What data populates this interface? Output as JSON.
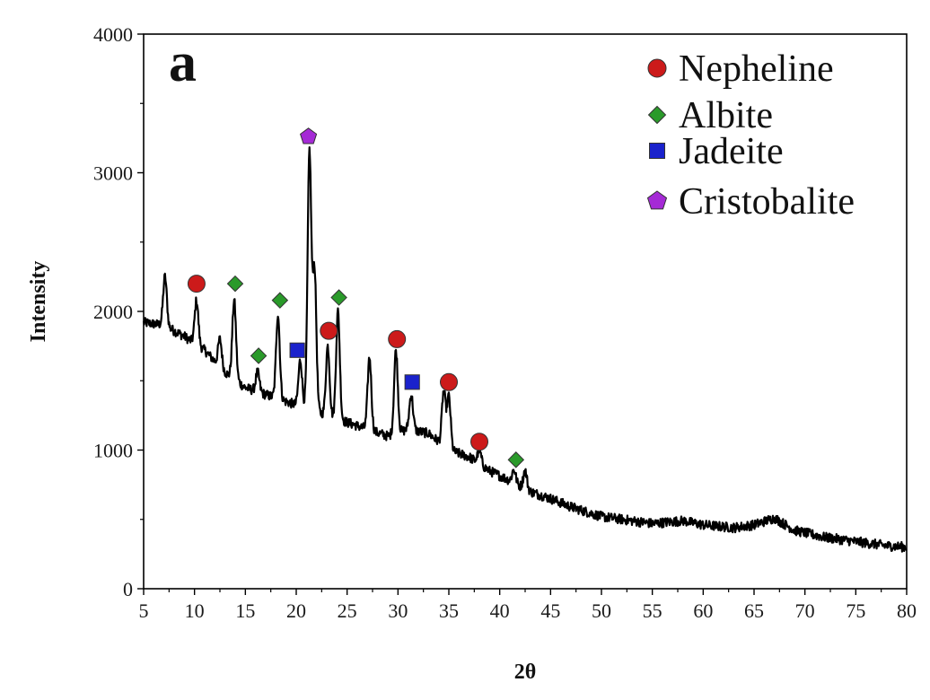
{
  "chart_data": {
    "type": "line",
    "panel_label": "a",
    "xlabel": "2θ",
    "ylabel": "Intensity",
    "xlim": [
      5,
      80
    ],
    "ylim": [
      0,
      4000
    ],
    "xticks": [
      "5",
      "10",
      "15",
      "20",
      "25",
      "30",
      "35",
      "40",
      "45",
      "50",
      "55",
      "60",
      "65",
      "70",
      "75",
      "80"
    ],
    "yticks": [
      "0",
      "1000",
      "2000",
      "3000",
      "4000"
    ],
    "grid": false,
    "legend_position": "top-right",
    "series_color": "#000000",
    "baseline": [
      [
        5,
        1920
      ],
      [
        7,
        1900
      ],
      [
        9,
        1820
      ],
      [
        11,
        1720
      ],
      [
        13,
        1560
      ],
      [
        15,
        1450
      ],
      [
        17,
        1400
      ],
      [
        19,
        1350
      ],
      [
        21,
        1300
      ],
      [
        23,
        1250
      ],
      [
        25,
        1200
      ],
      [
        27,
        1150
      ],
      [
        29,
        1100
      ],
      [
        31,
        1150
      ],
      [
        33,
        1120
      ],
      [
        35,
        1000
      ],
      [
        37,
        950
      ],
      [
        39,
        850
      ],
      [
        41,
        780
      ],
      [
        43,
        700
      ],
      [
        45,
        650
      ],
      [
        47,
        590
      ],
      [
        50,
        520
      ],
      [
        55,
        470
      ],
      [
        58,
        490
      ],
      [
        60,
        460
      ],
      [
        63,
        440
      ],
      [
        65,
        460
      ],
      [
        67,
        510
      ],
      [
        69,
        420
      ],
      [
        72,
        370
      ],
      [
        75,
        340
      ],
      [
        78,
        310
      ],
      [
        80,
        300
      ]
    ],
    "peaks": [
      {
        "x": 7.1,
        "y": 2250
      },
      {
        "x": 10.2,
        "y": 2080
      },
      {
        "x": 12.5,
        "y": 1800
      },
      {
        "x": 13.9,
        "y": 2080
      },
      {
        "x": 16.2,
        "y": 1560
      },
      {
        "x": 18.2,
        "y": 1980
      },
      {
        "x": 20.4,
        "y": 1650
      },
      {
        "x": 21.3,
        "y": 3150
      },
      {
        "x": 21.8,
        "y": 2300
      },
      {
        "x": 23.1,
        "y": 1750
      },
      {
        "x": 24.1,
        "y": 2000
      },
      {
        "x": 27.2,
        "y": 1670
      },
      {
        "x": 29.8,
        "y": 1720
      },
      {
        "x": 31.3,
        "y": 1400
      },
      {
        "x": 34.5,
        "y": 1420
      },
      {
        "x": 35.0,
        "y": 1380
      },
      {
        "x": 38.0,
        "y": 1000
      },
      {
        "x": 41.4,
        "y": 860
      },
      {
        "x": 42.5,
        "y": 850
      }
    ],
    "phases": [
      {
        "name": "Nepheline",
        "marker": "circle",
        "color": "#cc1a1a",
        "points": [
          [
            10.2,
            2200
          ],
          [
            23.2,
            1860
          ],
          [
            29.9,
            1800
          ],
          [
            35.0,
            1490
          ],
          [
            38.0,
            1060
          ]
        ]
      },
      {
        "name": "Albite",
        "marker": "diamond",
        "color": "#2a9a2a",
        "points": [
          [
            14.0,
            2200
          ],
          [
            16.3,
            1680
          ],
          [
            18.4,
            2080
          ],
          [
            24.2,
            2100
          ],
          [
            41.6,
            930
          ]
        ]
      },
      {
        "name": "Jadeite",
        "marker": "square",
        "color": "#1a22cc",
        "points": [
          [
            20.1,
            1720
          ],
          [
            31.4,
            1490
          ]
        ]
      },
      {
        "name": "Cristobalite",
        "marker": "pentagon",
        "color": "#a52ad6",
        "points": [
          [
            21.2,
            3260
          ]
        ]
      }
    ]
  }
}
